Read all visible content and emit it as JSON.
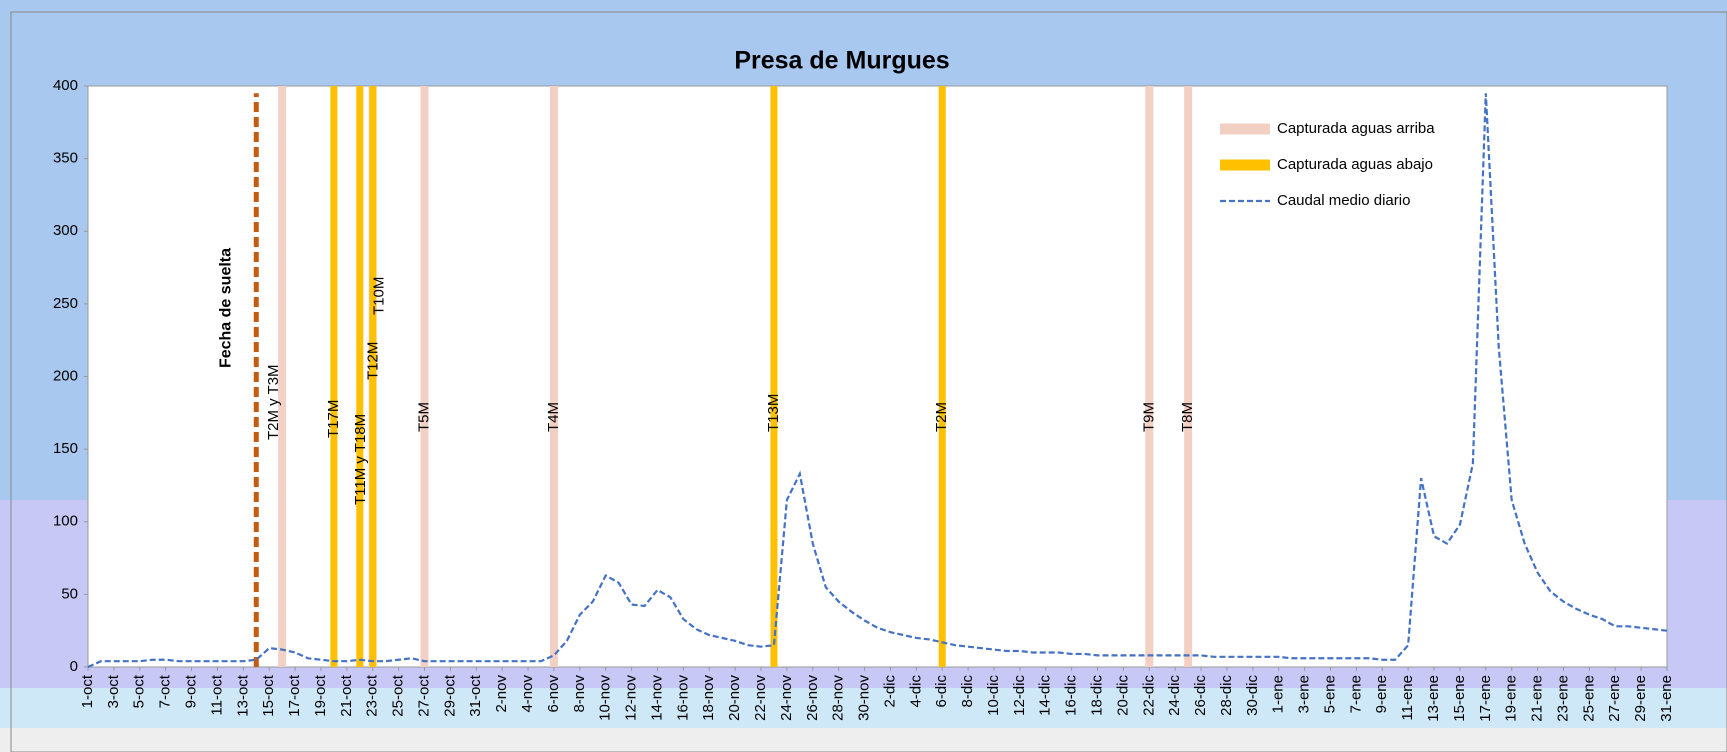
{
  "chart_data": {
    "type": "line",
    "title": "Presa de Murgues",
    "categories": [
      "1-oct",
      null,
      "3-oct",
      null,
      "5-oct",
      null,
      "7-oct",
      null,
      "9-oct",
      null,
      "11-oct",
      null,
      "13-oct",
      null,
      "15-oct",
      null,
      "17-oct",
      null,
      "19-oct",
      null,
      "21-oct",
      null,
      "23-oct",
      null,
      "25-oct",
      null,
      "27-oct",
      null,
      "29-oct",
      null,
      "31-oct",
      null,
      "2-nov",
      null,
      "4-nov",
      null,
      "6-nov",
      null,
      "8-nov",
      null,
      "10-nov",
      null,
      "12-nov",
      null,
      "14-nov",
      null,
      "16-nov",
      null,
      "18-nov",
      null,
      "20-nov",
      null,
      "22-nov",
      null,
      "24-nov",
      null,
      "26-nov",
      null,
      "28-nov",
      null,
      "30-nov",
      null,
      "2-dic",
      null,
      "4-dic",
      null,
      "6-dic",
      null,
      "8-dic",
      null,
      "10-dic",
      null,
      "12-dic",
      null,
      "14-dic",
      null,
      "16-dic",
      null,
      "18-dic",
      null,
      "20-dic",
      null,
      "22-dic",
      null,
      "24-dic",
      null,
      "26-dic",
      null,
      "28-dic",
      null,
      "30-dic",
      null,
      "1-ene",
      null,
      "3-ene",
      null,
      "5-ene",
      null,
      "7-ene",
      null,
      "9-ene",
      null,
      "11-ene",
      null,
      "13-ene",
      null,
      "15-ene",
      null,
      "17-ene",
      null,
      "19-ene",
      null,
      "21-ene",
      null,
      "23-ene",
      null,
      "25-ene",
      null,
      "27-ene",
      null,
      "29-ene",
      null,
      "31-ene"
    ],
    "series": [
      {
        "name": "Caudal medio diario",
        "color": "#4472c4",
        "dash": true,
        "values": [
          0,
          4,
          4,
          4,
          4,
          5,
          5,
          4,
          4,
          4,
          4,
          4,
          4,
          5,
          13,
          12,
          10,
          6,
          5,
          4,
          4,
          5,
          4,
          4,
          5,
          6,
          4,
          4,
          4,
          4,
          4,
          4,
          4,
          4,
          4,
          4,
          8,
          18,
          36,
          45,
          63,
          58,
          43,
          42,
          53,
          48,
          33,
          26,
          22,
          20,
          18,
          15,
          14,
          15,
          115,
          133,
          85,
          55,
          45,
          38,
          32,
          27,
          24,
          22,
          20,
          19,
          17,
          15,
          14,
          13,
          12,
          11,
          11,
          10,
          10,
          10,
          9,
          9,
          8,
          8,
          8,
          8,
          8,
          8,
          8,
          8,
          8,
          7,
          7,
          7,
          7,
          7,
          7,
          6,
          6,
          6,
          6,
          6,
          6,
          6,
          5,
          5,
          15,
          130,
          90,
          85,
          98,
          140,
          395,
          220,
          115,
          85,
          65,
          52,
          45,
          40,
          36,
          33,
          28,
          28,
          27,
          26,
          25
        ]
      }
    ],
    "events": [
      {
        "name": "Capturada aguas arriba",
        "color": "#f2d0c4",
        "width": 8,
        "positions": [
          15,
          22,
          26,
          36,
          82,
          85
        ],
        "labels": [
          "T2M y T3M",
          "T10M",
          "T5M",
          "T4M",
          "T9M",
          "T8M"
        ]
      },
      {
        "name": "Capturada aguas abajo",
        "color": "#ffc000",
        "width": 7,
        "positions": [
          19,
          21,
          22,
          53,
          66
        ],
        "labels": [
          "T17M",
          "T11M y T18M",
          "T12M",
          "T13M",
          "T2M"
        ]
      }
    ],
    "release": {
      "label": "Fecha de suelta",
      "position": 13,
      "value": 395,
      "color": "#c55a11"
    },
    "ylim": [
      0,
      400
    ],
    "yticks": [
      0,
      50,
      100,
      150,
      200,
      250,
      300,
      350,
      400
    ],
    "grid": false,
    "legend": "upper-right"
  }
}
